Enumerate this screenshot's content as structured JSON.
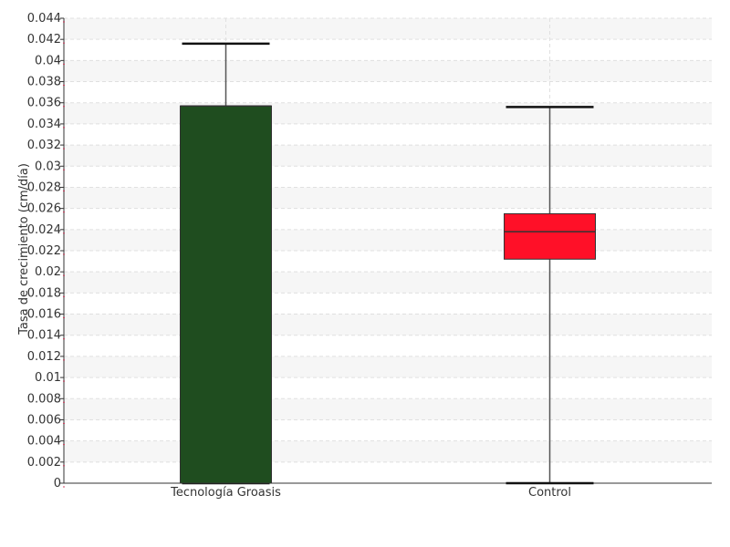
{
  "chart_data": {
    "type": "box",
    "ylabel": "Tasa de crecimiento (cm/día)",
    "xlabel": "",
    "ylim": [
      0,
      0.044
    ],
    "yticks": [
      0,
      0.002,
      0.004,
      0.006,
      0.008,
      0.01,
      0.012,
      0.014,
      0.016,
      0.018,
      0.02,
      0.022,
      0.024,
      0.026,
      0.028,
      0.03,
      0.032,
      0.034,
      0.036,
      0.038,
      0.04,
      0.042,
      0.044
    ],
    "ytick_labels": [
      "0",
      "0.002",
      "0.004",
      "0.006",
      "0.008",
      "0.01",
      "0.012",
      "0.014",
      "0.016",
      "0.018",
      "0.02",
      "0.022",
      "0.024",
      "0.026",
      "0.028",
      "0.03",
      "0.032",
      "0.034",
      "0.036",
      "0.038",
      "0.04",
      "0.042",
      "0.044"
    ],
    "categories": [
      "Tecnología Groasis",
      "Control"
    ],
    "boxes": [
      {
        "category": "Tecnología Groasis",
        "min": 0.0,
        "q1": 0.0,
        "median": 0.0357,
        "q3": 0.0357,
        "max": 0.0416,
        "color": "#1f4d1f"
      },
      {
        "category": "Control",
        "min": 0.0,
        "q1": 0.0212,
        "median": 0.0238,
        "q3": 0.0255,
        "max": 0.0356,
        "color": "#ff1028"
      }
    ],
    "grid": true,
    "band_colors": [
      "#f6f6f6",
      "#ffffff"
    ]
  }
}
